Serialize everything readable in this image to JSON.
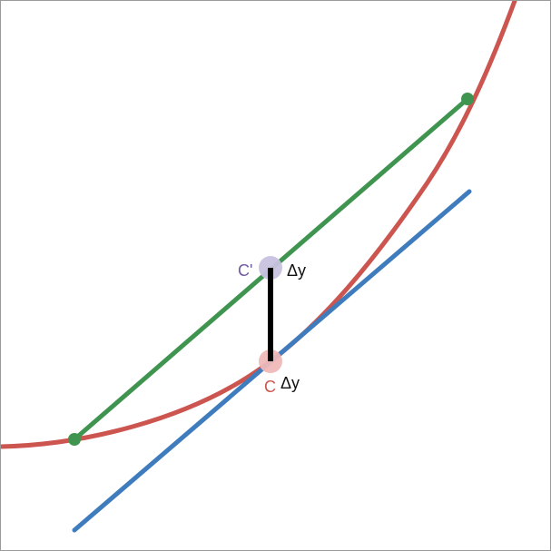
{
  "diagram": {
    "labels": {
      "c_prime": "C'",
      "c": "C",
      "delta_y_top": "Δy",
      "delta_y_bottom": "Δy"
    },
    "colors": {
      "curve": "#cc5550",
      "secant": "#3f944f",
      "tangent": "#3f7cbd",
      "delta_segment": "#000000",
      "point_c_halo": "#efb8b8",
      "point_c_prime_halo": "#c9c2e0",
      "label_c": "#cc5550",
      "label_c_prime": "#6f5aa0",
      "frame_border": "#9a9a9a"
    }
  }
}
